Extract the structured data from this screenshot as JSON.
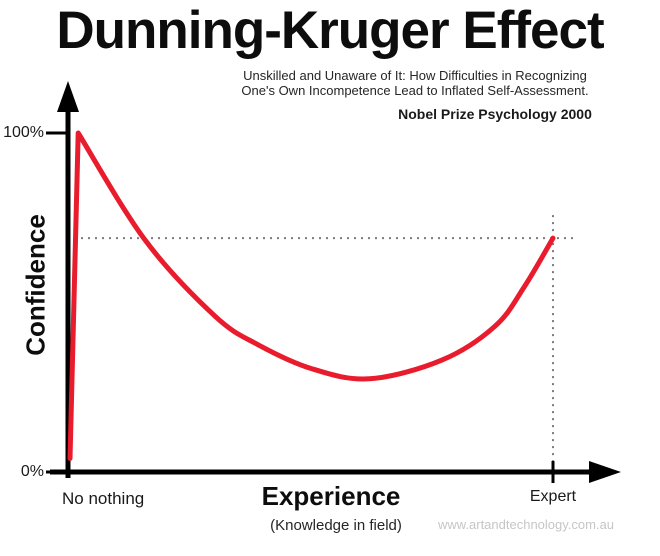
{
  "header": {
    "title": "Dunning-Kruger Effect",
    "subtitle_line1": "Unskilled and Unaware of It: How Difficulties in Recognizing",
    "subtitle_line2": "One's Own Incompetence Lead to Inflated Self-Assessment.",
    "attribution": "Nobel Prize Psychology  2000"
  },
  "axes": {
    "y_label": "Confidence",
    "y_max_tick": "100%",
    "y_min_tick": "0%",
    "x_label": "Experience",
    "x_sublabel": "(Knowledge in field)",
    "x_min_tick": "No nothing",
    "x_max_tick": "Expert"
  },
  "footer": {
    "watermark": "www.artandtechnology.com.au"
  },
  "colors": {
    "curve_red": "#e81c2c",
    "axis_black": "#000000",
    "dotted_gray": "#7b7b7b",
    "watermark_gray": "#c6c6c6"
  },
  "chart_data": {
    "type": "line",
    "title": "Dunning-Kruger Effect",
    "subtitle": "Unskilled and Unaware of It: How Difficulties in Recognizing One's Own Incompetence Lead to Inflated Self-Assessment.",
    "attribution": "Nobel Prize Psychology 2000",
    "xlabel": "Experience (Knowledge in field)",
    "ylabel": "Confidence",
    "x_axis_kind": "qualitative",
    "x_range_labels": [
      "No nothing",
      "Expert"
    ],
    "ylim": [
      0,
      100
    ],
    "y_tick_labels": [
      "0%",
      "100%"
    ],
    "grid": false,
    "legend": "none",
    "series": [
      {
        "name": "confidence-vs-experience",
        "comment_x_units": "0 = No nothing, 1 = Expert; y in percent confidence",
        "points": [
          [
            0,
            4
          ],
          [
            0.017,
            100
          ],
          [
            0.155,
            68.5
          ],
          [
            0.3,
            46
          ],
          [
            0.39,
            37.5
          ],
          [
            0.5,
            30.5
          ],
          [
            0.62,
            27.5
          ],
          [
            0.77,
            33
          ],
          [
            0.88,
            43
          ],
          [
            0.94,
            54.5
          ],
          [
            1.0,
            69
          ]
        ]
      }
    ],
    "reference_lines": {
      "horizontal_at_pct": 69,
      "vertical_at_x": 1.0
    }
  }
}
